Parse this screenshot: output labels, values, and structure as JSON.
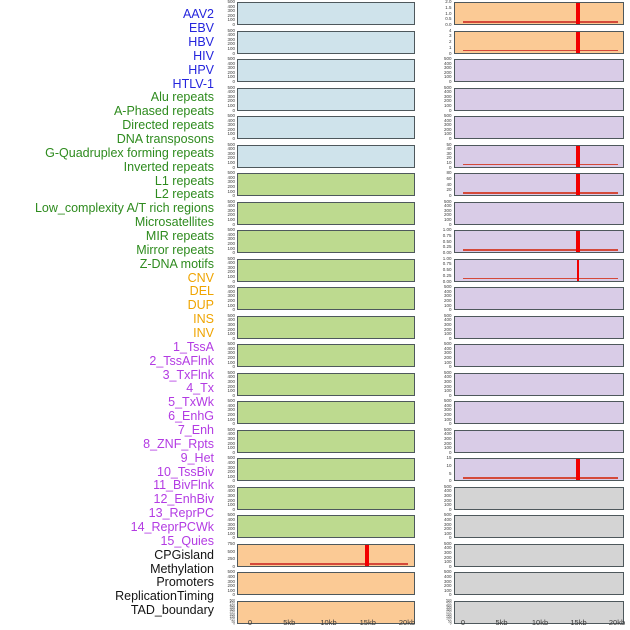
{
  "chart_data": {
    "type": "area",
    "title": "",
    "description": "Multi-track genomic feature density panels around a site at 15kb; two panel columns over a 0-20kb window",
    "x_axis": {
      "tick_labels": [
        "0",
        "5kb",
        "10kb",
        "15kb",
        "20kb"
      ],
      "range_kb": [
        0,
        20
      ]
    },
    "marker_position_kb": 15,
    "marker_color": "#f20000",
    "baseline_color": "#d4493a",
    "label_group_colors": {
      "virus": "#2525dd",
      "repeats": "#2e8b1e",
      "sv": "#efa400",
      "chromhmm": "#b33be3",
      "other": "#141414"
    },
    "panel_fill_colors": {
      "blue": "#cfe3eb",
      "green": "#bdda8f",
      "orange": "#fbca95",
      "purple": "#d9cce7",
      "gray": "#d4d4d4"
    },
    "row_labels": [
      {
        "text": "AAV2",
        "group": "virus"
      },
      {
        "text": "EBV",
        "group": "virus"
      },
      {
        "text": "HBV",
        "group": "virus"
      },
      {
        "text": "HIV",
        "group": "virus"
      },
      {
        "text": "HPV",
        "group": "virus"
      },
      {
        "text": "HTLV-1",
        "group": "virus"
      },
      {
        "text": "Alu repeats",
        "group": "repeats"
      },
      {
        "text": "A-Phased repeats",
        "group": "repeats"
      },
      {
        "text": "Directed repeats",
        "group": "repeats"
      },
      {
        "text": "DNA transposons",
        "group": "repeats"
      },
      {
        "text": "G-Quadruplex forming repeats",
        "group": "repeats"
      },
      {
        "text": "Inverted repeats",
        "group": "repeats"
      },
      {
        "text": "L1 repeats",
        "group": "repeats"
      },
      {
        "text": "L2 repeats",
        "group": "repeats"
      },
      {
        "text": "Low_complexity A/T rich regions",
        "group": "repeats"
      },
      {
        "text": "Microsatellites",
        "group": "repeats"
      },
      {
        "text": "MIR repeats",
        "group": "repeats"
      },
      {
        "text": "Mirror repeats",
        "group": "repeats"
      },
      {
        "text": "Z-DNA motifs",
        "group": "repeats"
      },
      {
        "text": "CNV",
        "group": "sv"
      },
      {
        "text": "DEL",
        "group": "sv"
      },
      {
        "text": "DUP",
        "group": "sv"
      },
      {
        "text": "INS",
        "group": "sv"
      },
      {
        "text": "INV",
        "group": "sv"
      },
      {
        "text": "1_TssA",
        "group": "chromhmm"
      },
      {
        "text": "2_TssAFlnk",
        "group": "chromhmm"
      },
      {
        "text": "3_TxFlnk",
        "group": "chromhmm"
      },
      {
        "text": "4_Tx",
        "group": "chromhmm"
      },
      {
        "text": "5_TxWk",
        "group": "chromhmm"
      },
      {
        "text": "6_EnhG",
        "group": "chromhmm"
      },
      {
        "text": "7_Enh",
        "group": "chromhmm"
      },
      {
        "text": "8_ZNF_Rpts",
        "group": "chromhmm"
      },
      {
        "text": "9_Het",
        "group": "chromhmm"
      },
      {
        "text": "10_TssBiv",
        "group": "chromhmm"
      },
      {
        "text": "11_BivFlnk",
        "group": "chromhmm"
      },
      {
        "text": "12_EnhBiv",
        "group": "chromhmm"
      },
      {
        "text": "13_ReprPC",
        "group": "chromhmm"
      },
      {
        "text": "14_ReprPCWk",
        "group": "chromhmm"
      },
      {
        "text": "15_Quies",
        "group": "chromhmm"
      },
      {
        "text": "CPGisland",
        "group": "other"
      },
      {
        "text": "Methylation",
        "group": "other"
      },
      {
        "text": "Promoters",
        "group": "other"
      },
      {
        "text": "ReplicationTiming",
        "group": "other"
      },
      {
        "text": "TAD_boundary",
        "group": "other"
      }
    ],
    "columns": [
      {
        "id": "left",
        "panels": [
          {
            "fill": "blue",
            "yticks": [
              "500",
              "400",
              "300",
              "200",
              "100",
              "0"
            ],
            "spike": null,
            "baseline": false
          },
          {
            "fill": "blue",
            "yticks": [
              "500",
              "400",
              "300",
              "200",
              "100",
              "0"
            ],
            "spike": null,
            "baseline": false
          },
          {
            "fill": "blue",
            "yticks": [
              "500",
              "400",
              "300",
              "200",
              "100",
              "0"
            ],
            "spike": null,
            "baseline": false
          },
          {
            "fill": "blue",
            "yticks": [
              "500",
              "400",
              "300",
              "200",
              "100",
              "0"
            ],
            "spike": null,
            "baseline": false
          },
          {
            "fill": "blue",
            "yticks": [
              "500",
              "400",
              "300",
              "200",
              "100",
              "0"
            ],
            "spike": null,
            "baseline": false
          },
          {
            "fill": "blue",
            "yticks": [
              "500",
              "400",
              "300",
              "200",
              "100",
              "0"
            ],
            "spike": null,
            "baseline": false
          },
          {
            "fill": "green",
            "yticks": [
              "500",
              "400",
              "300",
              "200",
              "100",
              "0"
            ],
            "spike": null,
            "baseline": false
          },
          {
            "fill": "green",
            "yticks": [
              "500",
              "400",
              "300",
              "200",
              "100",
              "0"
            ],
            "spike": null,
            "baseline": false
          },
          {
            "fill": "green",
            "yticks": [
              "500",
              "400",
              "300",
              "200",
              "100",
              "0"
            ],
            "spike": null,
            "baseline": false
          },
          {
            "fill": "green",
            "yticks": [
              "500",
              "400",
              "300",
              "200",
              "100",
              "0"
            ],
            "spike": null,
            "baseline": false
          },
          {
            "fill": "green",
            "yticks": [
              "500",
              "400",
              "300",
              "200",
              "100",
              "0"
            ],
            "spike": null,
            "baseline": false
          },
          {
            "fill": "green",
            "yticks": [
              "500",
              "400",
              "300",
              "200",
              "100",
              "0"
            ],
            "spike": null,
            "baseline": false
          },
          {
            "fill": "green",
            "yticks": [
              "500",
              "400",
              "300",
              "200",
              "100",
              "0"
            ],
            "spike": null,
            "baseline": false
          },
          {
            "fill": "green",
            "yticks": [
              "500",
              "400",
              "300",
              "200",
              "100",
              "0"
            ],
            "spike": null,
            "baseline": false
          },
          {
            "fill": "green",
            "yticks": [
              "500",
              "400",
              "300",
              "200",
              "100",
              "0"
            ],
            "spike": null,
            "baseline": false
          },
          {
            "fill": "green",
            "yticks": [
              "500",
              "400",
              "300",
              "200",
              "100",
              "0"
            ],
            "spike": null,
            "baseline": false
          },
          {
            "fill": "green",
            "yticks": [
              "500",
              "400",
              "300",
              "200",
              "100",
              "0"
            ],
            "spike": null,
            "baseline": false
          },
          {
            "fill": "green",
            "yticks": [
              "500",
              "400",
              "300",
              "200",
              "100",
              "0"
            ],
            "spike": null,
            "baseline": false
          },
          {
            "fill": "green",
            "yticks": [
              "500",
              "400",
              "300",
              "200",
              "100",
              "0"
            ],
            "spike": null,
            "baseline": false
          },
          {
            "fill": "orange",
            "yticks": [
              "750",
              "500",
              "250",
              "0"
            ],
            "spike": "thick",
            "baseline": true
          },
          {
            "fill": "orange",
            "yticks": [
              "500",
              "400",
              "300",
              "200",
              "100",
              "0"
            ],
            "spike": null,
            "baseline": false
          },
          {
            "fill": "orange",
            "yticks": [
              "500",
              "450",
              "400",
              "350",
              "300",
              "250",
              "200",
              "150",
              "100",
              "50",
              "0"
            ],
            "spike": null,
            "baseline": false
          }
        ]
      },
      {
        "id": "right",
        "panels": [
          {
            "fill": "orange",
            "yticks": [
              "2.0",
              "1.5",
              "1.0",
              "0.5",
              "0.0"
            ],
            "spike": "thick",
            "baseline": true
          },
          {
            "fill": "orange",
            "yticks": [
              "4",
              "3",
              "2",
              "1",
              "0"
            ],
            "spike": "thick",
            "baseline": true
          },
          {
            "fill": "purple",
            "yticks": [
              "500",
              "400",
              "300",
              "200",
              "100",
              "0"
            ],
            "spike": null,
            "baseline": false
          },
          {
            "fill": "purple",
            "yticks": [
              "500",
              "400",
              "300",
              "200",
              "100",
              "0"
            ],
            "spike": null,
            "baseline": false
          },
          {
            "fill": "purple",
            "yticks": [
              "500",
              "400",
              "300",
              "200",
              "100",
              "0"
            ],
            "spike": null,
            "baseline": false
          },
          {
            "fill": "purple",
            "yticks": [
              "50",
              "40",
              "30",
              "20",
              "10",
              "0"
            ],
            "spike": "thick",
            "baseline": true
          },
          {
            "fill": "purple",
            "yticks": [
              "80",
              "60",
              "40",
              "20",
              "0"
            ],
            "spike": "thick",
            "baseline": true
          },
          {
            "fill": "purple",
            "yticks": [
              "500",
              "400",
              "300",
              "200",
              "100",
              "0"
            ],
            "spike": null,
            "baseline": false
          },
          {
            "fill": "purple",
            "yticks": [
              "1.00",
              "0.75",
              "0.50",
              "0.25",
              "0.00"
            ],
            "spike": "thick",
            "baseline": true
          },
          {
            "fill": "purple",
            "yticks": [
              "1.00",
              "0.75",
              "0.50",
              "0.25",
              "0.00"
            ],
            "spike": "thin",
            "baseline": true
          },
          {
            "fill": "purple",
            "yticks": [
              "500",
              "400",
              "300",
              "200",
              "100",
              "0"
            ],
            "spike": null,
            "baseline": false
          },
          {
            "fill": "purple",
            "yticks": [
              "500",
              "400",
              "300",
              "200",
              "100",
              "0"
            ],
            "spike": null,
            "baseline": false
          },
          {
            "fill": "purple",
            "yticks": [
              "500",
              "400",
              "300",
              "200",
              "100",
              "0"
            ],
            "spike": null,
            "baseline": false
          },
          {
            "fill": "purple",
            "yticks": [
              "500",
              "400",
              "300",
              "200",
              "100",
              "0"
            ],
            "spike": null,
            "baseline": false
          },
          {
            "fill": "purple",
            "yticks": [
              "500",
              "400",
              "300",
              "200",
              "100",
              "0"
            ],
            "spike": null,
            "baseline": false
          },
          {
            "fill": "purple",
            "yticks": [
              "500",
              "400",
              "300",
              "200",
              "100",
              "0"
            ],
            "spike": null,
            "baseline": false
          },
          {
            "fill": "purple",
            "yticks": [
              "15",
              "10",
              "5",
              "0"
            ],
            "spike": "thick",
            "baseline": true
          },
          {
            "fill": "gray",
            "yticks": [
              "500",
              "400",
              "300",
              "200",
              "100",
              "0"
            ],
            "spike": null,
            "baseline": false
          },
          {
            "fill": "gray",
            "yticks": [
              "500",
              "400",
              "300",
              "200",
              "100",
              "0"
            ],
            "spike": null,
            "baseline": false
          },
          {
            "fill": "gray",
            "yticks": [
              "500",
              "400",
              "300",
              "200",
              "100",
              "0"
            ],
            "spike": null,
            "baseline": false
          },
          {
            "fill": "gray",
            "yticks": [
              "500",
              "400",
              "300",
              "200",
              "100",
              "0"
            ],
            "spike": null,
            "baseline": false
          },
          {
            "fill": "gray",
            "yticks": [
              "500",
              "450",
              "400",
              "350",
              "300",
              "250",
              "200",
              "150",
              "100",
              "50",
              "0"
            ],
            "spike": null,
            "baseline": false
          }
        ]
      }
    ]
  }
}
